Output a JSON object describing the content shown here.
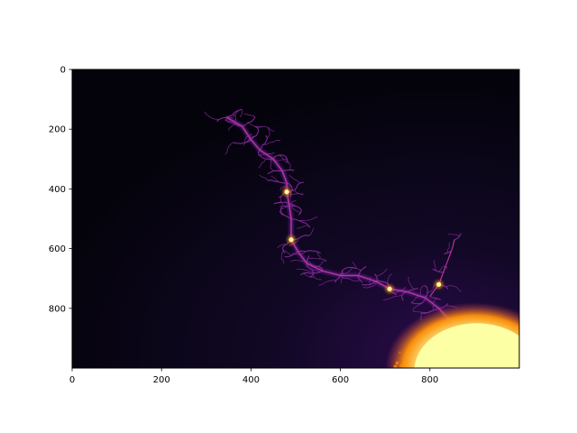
{
  "chart_data": {
    "type": "heatmap",
    "title": "",
    "xlabel": "",
    "ylabel": "",
    "colormap": "inferno",
    "image_size": [
      1000,
      1000
    ],
    "xlim": [
      0,
      1000
    ],
    "ylim": [
      1000,
      0
    ],
    "x_ticks": [
      0,
      200,
      400,
      600,
      800
    ],
    "x_tick_labels": [
      "0",
      "200",
      "400",
      "600",
      "800"
    ],
    "y_ticks": [
      0,
      200,
      400,
      600,
      800
    ],
    "y_tick_labels": [
      "0",
      "200",
      "400",
      "600",
      "800"
    ],
    "grid": false,
    "legend": "none",
    "content": "Mandelbrot set boundary detail rendered with a dark-to-yellow colormap",
    "bright_spots": [
      {
        "x": 480,
        "y": 410
      },
      {
        "x": 490,
        "y": 570
      },
      {
        "x": 710,
        "y": 735
      },
      {
        "x": 820,
        "y": 720
      }
    ],
    "colors": {
      "background": "#05040f",
      "filament": "#8a2aa0",
      "filament_glow": "#4a1270",
      "hot": "#f98e09",
      "bulb": "#fcffa4"
    }
  }
}
